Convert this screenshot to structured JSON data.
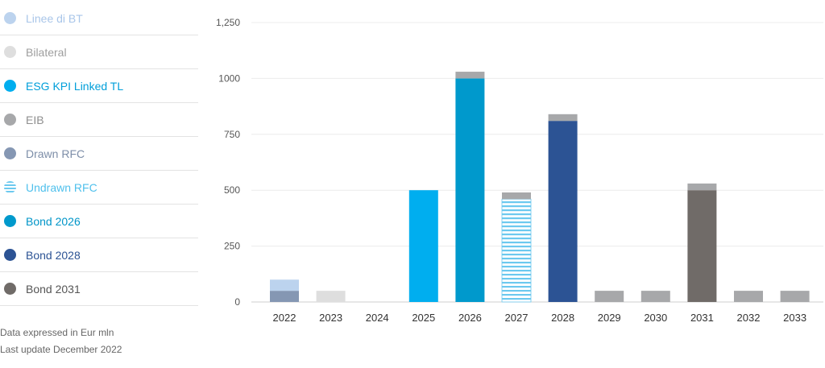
{
  "legend": {
    "items": [
      {
        "key": "linee_bt",
        "label": "Linee di BT",
        "color": "#bcd3ee",
        "text_color": "#a9c6e9",
        "pattern": "solid"
      },
      {
        "key": "bilateral",
        "label": "Bilateral",
        "color": "#dedede",
        "text_color": "#9e9e9e",
        "pattern": "solid"
      },
      {
        "key": "esg_kpi",
        "label": "ESG KPI Linked TL",
        "color": "#00aeef",
        "text_color": "#009fda",
        "pattern": "solid"
      },
      {
        "key": "eib",
        "label": "EIB",
        "color": "#a7a8aa",
        "text_color": "#8f8f8f",
        "pattern": "solid"
      },
      {
        "key": "drawn_rfc",
        "label": "Drawn RFC",
        "color": "#8597b3",
        "text_color": "#7d8ea8",
        "pattern": "solid"
      },
      {
        "key": "undrawn_rfc",
        "label": "Undrawn RFC",
        "color": "#6cc9ef",
        "text_color": "#4fc0ec",
        "pattern": "stripes"
      },
      {
        "key": "bond_2026",
        "label": "Bond 2026",
        "color": "#0099cc",
        "text_color": "#0095c8",
        "pattern": "solid"
      },
      {
        "key": "bond_2028",
        "label": "Bond 2028",
        "color": "#2c5394",
        "text_color": "#2c5394",
        "pattern": "solid"
      },
      {
        "key": "bond_2031",
        "label": "Bond 2031",
        "color": "#706b68",
        "text_color": "#555555",
        "pattern": "solid"
      }
    ]
  },
  "notes": {
    "line1": "Data expressed in Eur mln",
    "line2": "Last update December 2022"
  },
  "chart_data": {
    "type": "bar",
    "stacked": true,
    "categories": [
      "2022",
      "2023",
      "2024",
      "2025",
      "2026",
      "2027",
      "2028",
      "2029",
      "2030",
      "2031",
      "2032",
      "2033"
    ],
    "y_ticks": [
      0,
      250,
      500,
      750,
      1000,
      1250
    ],
    "y_tick_labels": [
      "0",
      "250",
      "500",
      "750",
      "1000",
      "1,250"
    ],
    "ylim": [
      0,
      1250
    ],
    "grid": true,
    "legend_position": "left",
    "series": [
      {
        "name": "Drawn RFC",
        "key": "drawn_rfc",
        "values": [
          50,
          0,
          0,
          0,
          0,
          0,
          0,
          0,
          0,
          0,
          0,
          0
        ]
      },
      {
        "name": "Linee di BT",
        "key": "linee_bt",
        "values": [
          50,
          0,
          0,
          0,
          0,
          0,
          0,
          0,
          0,
          0,
          0,
          0
        ]
      },
      {
        "name": "Bilateral",
        "key": "bilateral",
        "values": [
          0,
          50,
          0,
          0,
          0,
          0,
          0,
          0,
          0,
          0,
          0,
          0
        ]
      },
      {
        "name": "ESG KPI Linked TL",
        "key": "esg_kpi",
        "values": [
          0,
          0,
          0,
          500,
          0,
          0,
          0,
          0,
          0,
          0,
          0,
          0
        ]
      },
      {
        "name": "Bond 2026",
        "key": "bond_2026",
        "values": [
          0,
          0,
          0,
          0,
          1000,
          0,
          0,
          0,
          0,
          0,
          0,
          0
        ]
      },
      {
        "name": "Undrawn RFC",
        "key": "undrawn_rfc",
        "values": [
          0,
          0,
          0,
          0,
          0,
          460,
          0,
          0,
          0,
          0,
          0,
          0
        ]
      },
      {
        "name": "Bond 2028",
        "key": "bond_2028",
        "values": [
          0,
          0,
          0,
          0,
          0,
          0,
          810,
          0,
          0,
          0,
          0,
          0
        ]
      },
      {
        "name": "Bond 2031",
        "key": "bond_2031",
        "values": [
          0,
          0,
          0,
          0,
          0,
          0,
          0,
          0,
          0,
          500,
          0,
          0
        ]
      },
      {
        "name": "EIB",
        "key": "eib",
        "values": [
          0,
          0,
          0,
          0,
          30,
          30,
          30,
          50,
          50,
          30,
          50,
          50
        ]
      }
    ]
  }
}
